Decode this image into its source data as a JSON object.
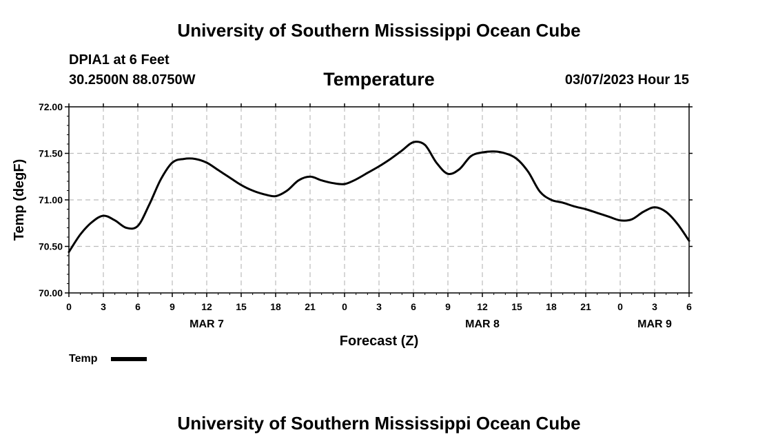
{
  "header": {
    "title": "University of Southern Mississippi Ocean Cube",
    "station": "DPIA1 at 6 Feet",
    "coords": "30.2500N  88.0750W",
    "chart_title": "Temperature",
    "timestamp": "03/07/2023 Hour 15"
  },
  "footer": {
    "title": "University of Southern Mississippi Ocean Cube"
  },
  "colors": {
    "line": "#000000",
    "grid": "#bbbbbb",
    "background": "#ffffff"
  },
  "chart_data": {
    "type": "line",
    "title": "Temperature",
    "xlabel": "Forecast (Z)",
    "ylabel": "Temp (degF)",
    "ylim": [
      70.0,
      72.0
    ],
    "xlim": [
      0,
      54
    ],
    "grid": true,
    "yticks": [
      {
        "value": 70.0,
        "label": "70.00"
      },
      {
        "value": 70.5,
        "label": "70.50"
      },
      {
        "value": 71.0,
        "label": "71.00"
      },
      {
        "value": 71.5,
        "label": "71.50"
      },
      {
        "value": 72.0,
        "label": "72.00"
      }
    ],
    "xticks": [
      {
        "value": 0,
        "label": "0"
      },
      {
        "value": 3,
        "label": "3"
      },
      {
        "value": 6,
        "label": "6"
      },
      {
        "value": 9,
        "label": "9"
      },
      {
        "value": 12,
        "label": "12"
      },
      {
        "value": 15,
        "label": "15"
      },
      {
        "value": 18,
        "label": "18"
      },
      {
        "value": 21,
        "label": "21"
      },
      {
        "value": 24,
        "label": "0"
      },
      {
        "value": 27,
        "label": "3"
      },
      {
        "value": 30,
        "label": "6"
      },
      {
        "value": 33,
        "label": "9"
      },
      {
        "value": 36,
        "label": "12"
      },
      {
        "value": 39,
        "label": "15"
      },
      {
        "value": 42,
        "label": "18"
      },
      {
        "value": 45,
        "label": "21"
      },
      {
        "value": 48,
        "label": "0"
      },
      {
        "value": 51,
        "label": "3"
      },
      {
        "value": 54,
        "label": "6"
      }
    ],
    "date_labels": [
      {
        "value": 12,
        "label": "MAR 7"
      },
      {
        "value": 36,
        "label": "MAR 8"
      },
      {
        "value": 51,
        "label": "MAR 9"
      }
    ],
    "legend": {
      "label": "Temp",
      "position": "bottom-left"
    },
    "series": [
      {
        "name": "Temp",
        "x": [
          0,
          1,
          2,
          3,
          4,
          5,
          6,
          7,
          8,
          9,
          10,
          11,
          12,
          13,
          14,
          15,
          16,
          17,
          18,
          19,
          20,
          21,
          22,
          23,
          24,
          25,
          26,
          27,
          28,
          29,
          30,
          31,
          32,
          33,
          34,
          35,
          36,
          37,
          38,
          39,
          40,
          41,
          42,
          43,
          44,
          45,
          46,
          47,
          48,
          49,
          50,
          51,
          52,
          53,
          54
        ],
        "values": [
          70.44,
          70.63,
          70.76,
          70.83,
          70.78,
          70.7,
          70.72,
          70.95,
          71.22,
          71.4,
          71.44,
          71.44,
          71.4,
          71.32,
          71.24,
          71.16,
          71.1,
          71.06,
          71.04,
          71.1,
          71.21,
          71.25,
          71.21,
          71.18,
          71.17,
          71.22,
          71.29,
          71.36,
          71.44,
          71.53,
          71.62,
          71.59,
          71.4,
          71.28,
          71.33,
          71.47,
          71.51,
          71.52,
          71.5,
          71.44,
          71.3,
          71.09,
          71.0,
          70.97,
          70.93,
          70.9,
          70.86,
          70.82,
          70.78,
          70.79,
          70.87,
          70.92,
          70.87,
          70.74,
          70.56
        ]
      }
    ]
  }
}
